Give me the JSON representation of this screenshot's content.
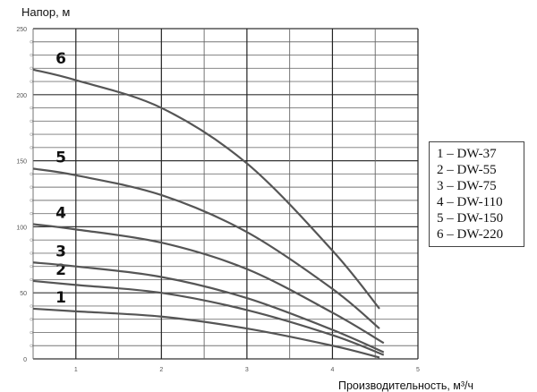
{
  "chart_data": {
    "type": "line",
    "title": "",
    "xlabel": "Производительность, м³/ч",
    "ylabel": "Напор, м",
    "xlim": [
      0.5,
      5
    ],
    "ylim": [
      0,
      250
    ],
    "x_ticks": [
      "1",
      "2",
      "3",
      "4",
      "5"
    ],
    "y_ticks": [
      "0",
      "50",
      "100",
      "150",
      "200",
      "250"
    ],
    "grid": true,
    "legend_position": "right",
    "line_color": "#555555",
    "series": [
      {
        "name": "1",
        "legend": "1 – DW-37",
        "x": [
          0.5,
          1,
          2,
          3,
          4,
          4.55
        ],
        "y": [
          38,
          36,
          32,
          23,
          10,
          1
        ]
      },
      {
        "name": "2",
        "legend": "2 – DW-55",
        "x": [
          0.5,
          1,
          2,
          3,
          4,
          4.6
        ],
        "y": [
          59,
          56,
          50,
          37,
          18,
          3
        ]
      },
      {
        "name": "3",
        "legend": "3 – DW-75",
        "x": [
          0.5,
          1,
          2,
          3,
          4,
          4.6
        ],
        "y": [
          73,
          70,
          62,
          46,
          22,
          5
        ]
      },
      {
        "name": "4",
        "legend": "4 – DW-110",
        "x": [
          0.5,
          1,
          2,
          3,
          4,
          4.6
        ],
        "y": [
          102,
          98,
          88,
          68,
          35,
          12
        ]
      },
      {
        "name": "5",
        "legend": "5 – DW-150",
        "x": [
          0.5,
          1,
          2,
          3,
          4,
          4.55
        ],
        "y": [
          144,
          139,
          124,
          96,
          53,
          23
        ]
      },
      {
        "name": "6",
        "legend": "6 – DW-220",
        "x": [
          0.5,
          1,
          2,
          3,
          4,
          4.55
        ],
        "y": [
          219,
          211,
          190,
          148,
          82,
          38
        ]
      }
    ]
  }
}
